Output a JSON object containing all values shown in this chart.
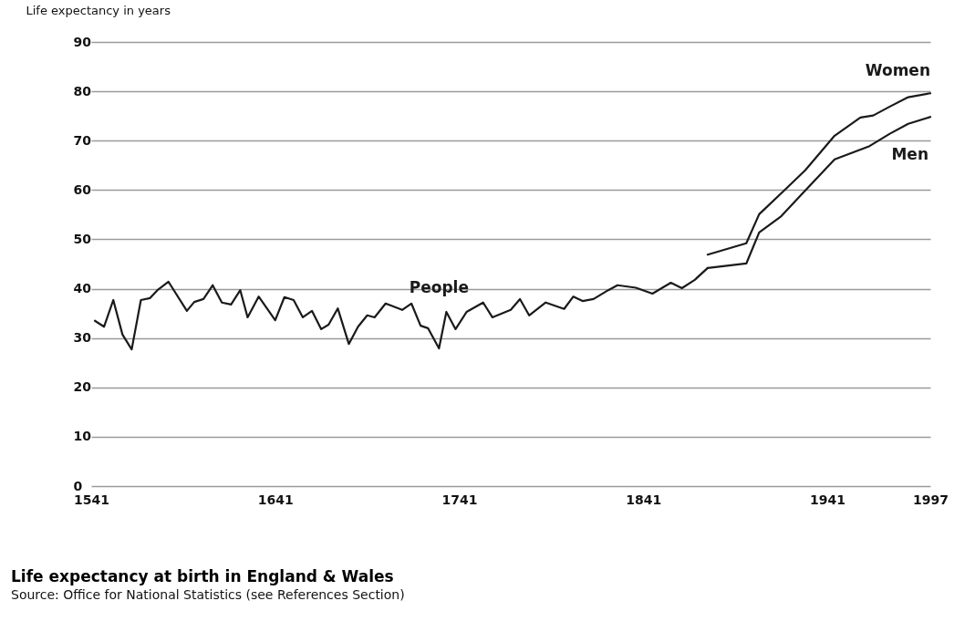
{
  "chart_data": {
    "type": "line",
    "title": "Life expectancy at birth in England & Wales",
    "ylabel": "Life expectancy in years",
    "annotations": [
      "Source: Office for National Statistics (see References Section)"
    ],
    "xlim": [
      1541,
      1997
    ],
    "xticks": [
      1541,
      1641,
      1741,
      1841,
      1941,
      1997
    ],
    "ylim": [
      0,
      90
    ],
    "yticks": [
      0,
      10,
      20,
      30,
      40,
      50,
      60,
      70,
      80,
      90
    ],
    "grid": "y",
    "legend": false,
    "marker": "none",
    "line_style": "solid",
    "series": [
      {
        "name": "People",
        "color": "#1a1a1a",
        "x": [
          1543,
          1548,
          1553,
          1558,
          1563,
          1568,
          1573,
          1577,
          1583,
          1593,
          1597,
          1602,
          1607,
          1612,
          1617,
          1622,
          1626,
          1632,
          1641,
          1646,
          1651,
          1656,
          1661,
          1666,
          1670,
          1675,
          1681,
          1686,
          1691,
          1695,
          1701,
          1710,
          1715,
          1720,
          1724,
          1730,
          1734,
          1739,
          1745,
          1754,
          1759,
          1769,
          1774,
          1779,
          1788,
          1798,
          1803,
          1808,
          1814,
          1822,
          1827,
          1837,
          1846,
          1856,
          1862,
          1869,
          1876
        ],
        "values": [
          33.5,
          32.3,
          37.7,
          30.7,
          27.7,
          37.7,
          38.1,
          39.7,
          41.4,
          35.5,
          37.3,
          37.9,
          40.7,
          37.2,
          36.8,
          39.7,
          34.2,
          38.4,
          33.6,
          38.3,
          37.7,
          34.2,
          35.5,
          31.8,
          32.7,
          36.0,
          28.8,
          32.3,
          34.6,
          34.2,
          37.0,
          35.7,
          37.0,
          32.5,
          32.0,
          27.9,
          35.3,
          31.8,
          35.3,
          37.2,
          34.2,
          35.7,
          37.9,
          34.6,
          37.2,
          35.9,
          38.4,
          37.5,
          37.9,
          39.7,
          40.7,
          40.2,
          39.0,
          41.2,
          40.1,
          41.8,
          44.2
        ]
      },
      {
        "name": "Women",
        "color": "#1a1a1a",
        "x": [
          1876,
          1897,
          1904,
          1917,
          1929,
          1945,
          1959,
          1966,
          1975,
          1985,
          1997
        ],
        "values": [
          46.9,
          49.2,
          55.1,
          59.7,
          64.0,
          71.0,
          74.7,
          75.1,
          76.9,
          78.8,
          79.6
        ]
      },
      {
        "name": "Men",
        "color": "#1a1a1a",
        "x": [
          1876,
          1897,
          1904,
          1916,
          1927,
          1945,
          1964,
          1975,
          1985,
          1997
        ],
        "values": [
          44.2,
          45.1,
          51.4,
          54.7,
          59.1,
          66.2,
          68.9,
          71.4,
          73.4,
          74.8
        ]
      }
    ]
  }
}
